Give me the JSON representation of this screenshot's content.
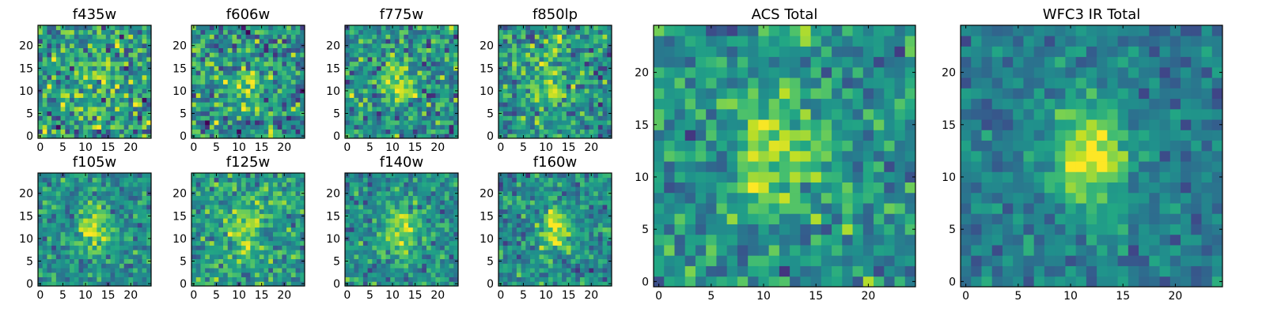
{
  "chart_data": [
    {
      "type": "heatmap",
      "title": "f435w",
      "rows": 25,
      "cols": 25,
      "xlim": [
        -0.5,
        24.5
      ],
      "ylim": [
        -0.5,
        24.5
      ],
      "xticks": [
        0,
        5,
        10,
        15,
        20
      ],
      "yticks": [
        0,
        5,
        10,
        15,
        20
      ],
      "grid": false,
      "colormap": "viridis",
      "signal": {
        "cx": 12,
        "cy": 11,
        "amp": 0.15,
        "noise": 0.85,
        "base": 0.55
      }
    },
    {
      "type": "heatmap",
      "title": "f606w",
      "rows": 25,
      "cols": 25,
      "xlim": [
        -0.5,
        24.5
      ],
      "ylim": [
        -0.5,
        24.5
      ],
      "xticks": [
        0,
        5,
        10,
        15,
        20
      ],
      "yticks": [
        0,
        5,
        10,
        15,
        20
      ],
      "grid": false,
      "colormap": "viridis",
      "signal": {
        "cx": 11,
        "cy": 11,
        "amp": 0.3,
        "noise": 0.8,
        "base": 0.5
      }
    },
    {
      "type": "heatmap",
      "title": "f775w",
      "rows": 25,
      "cols": 25,
      "xlim": [
        -0.5,
        24.5
      ],
      "ylim": [
        -0.5,
        24.5
      ],
      "xticks": [
        0,
        5,
        10,
        15,
        20
      ],
      "yticks": [
        0,
        5,
        10,
        15,
        20
      ],
      "grid": false,
      "colormap": "viridis",
      "signal": {
        "cx": 11,
        "cy": 12,
        "amp": 0.35,
        "noise": 0.75,
        "base": 0.5
      }
    },
    {
      "type": "heatmap",
      "title": "f850lp",
      "rows": 25,
      "cols": 25,
      "xlim": [
        -0.5,
        24.5
      ],
      "ylim": [
        -0.5,
        24.5
      ],
      "xticks": [
        0,
        5,
        10,
        15,
        20
      ],
      "yticks": [
        0,
        5,
        10,
        15,
        20
      ],
      "grid": false,
      "colormap": "viridis",
      "signal": {
        "cx": 10,
        "cy": 12,
        "amp": 0.35,
        "noise": 0.75,
        "base": 0.52
      }
    },
    {
      "type": "heatmap",
      "title": "f105w",
      "rows": 25,
      "cols": 25,
      "xlim": [
        -0.5,
        24.5
      ],
      "ylim": [
        -0.5,
        24.5
      ],
      "xticks": [
        0,
        5,
        10,
        15,
        20
      ],
      "yticks": [
        0,
        5,
        10,
        15,
        20
      ],
      "grid": false,
      "colormap": "viridis",
      "signal": {
        "cx": 12,
        "cy": 12,
        "amp": 0.4,
        "noise": 0.55,
        "base": 0.5
      }
    },
    {
      "type": "heatmap",
      "title": "f125w",
      "rows": 25,
      "cols": 25,
      "xlim": [
        -0.5,
        24.5
      ],
      "ylim": [
        -0.5,
        24.5
      ],
      "xticks": [
        0,
        5,
        10,
        15,
        20
      ],
      "yticks": [
        0,
        5,
        10,
        15,
        20
      ],
      "grid": false,
      "colormap": "viridis",
      "signal": {
        "cx": 11,
        "cy": 12,
        "amp": 0.3,
        "noise": 0.6,
        "base": 0.55
      }
    },
    {
      "type": "heatmap",
      "title": "f140w",
      "rows": 25,
      "cols": 25,
      "xlim": [
        -0.5,
        24.5
      ],
      "ylim": [
        -0.5,
        24.5
      ],
      "xticks": [
        0,
        5,
        10,
        15,
        20
      ],
      "yticks": [
        0,
        5,
        10,
        15,
        20
      ],
      "grid": false,
      "colormap": "viridis",
      "signal": {
        "cx": 12,
        "cy": 12,
        "amp": 0.4,
        "noise": 0.55,
        "base": 0.5
      }
    },
    {
      "type": "heatmap",
      "title": "f160w",
      "rows": 25,
      "cols": 25,
      "xlim": [
        -0.5,
        24.5
      ],
      "ylim": [
        -0.5,
        24.5
      ],
      "xticks": [
        0,
        5,
        10,
        15,
        20
      ],
      "yticks": [
        0,
        5,
        10,
        15,
        20
      ],
      "grid": false,
      "colormap": "viridis",
      "signal": {
        "cx": 12,
        "cy": 12,
        "amp": 0.45,
        "noise": 0.55,
        "base": 0.48
      }
    },
    {
      "type": "heatmap",
      "title": "ACS Total",
      "rows": 25,
      "cols": 25,
      "xlim": [
        -0.5,
        24.5
      ],
      "ylim": [
        -0.5,
        24.5
      ],
      "xticks": [
        0,
        5,
        10,
        15,
        20
      ],
      "yticks": [
        0,
        5,
        10,
        15,
        20
      ],
      "grid": false,
      "colormap": "viridis",
      "signal": {
        "cx": 11,
        "cy": 12,
        "amp": 0.4,
        "noise": 0.6,
        "base": 0.5
      }
    },
    {
      "type": "heatmap",
      "title": "WFC3 IR Total",
      "rows": 25,
      "cols": 25,
      "xlim": [
        -0.5,
        24.5
      ],
      "ylim": [
        -0.5,
        24.5
      ],
      "xticks": [
        0,
        5,
        10,
        15,
        20
      ],
      "yticks": [
        0,
        5,
        10,
        15,
        20
      ],
      "grid": false,
      "colormap": "viridis",
      "signal": {
        "cx": 12,
        "cy": 12,
        "amp": 0.55,
        "noise": 0.4,
        "base": 0.42
      }
    }
  ]
}
